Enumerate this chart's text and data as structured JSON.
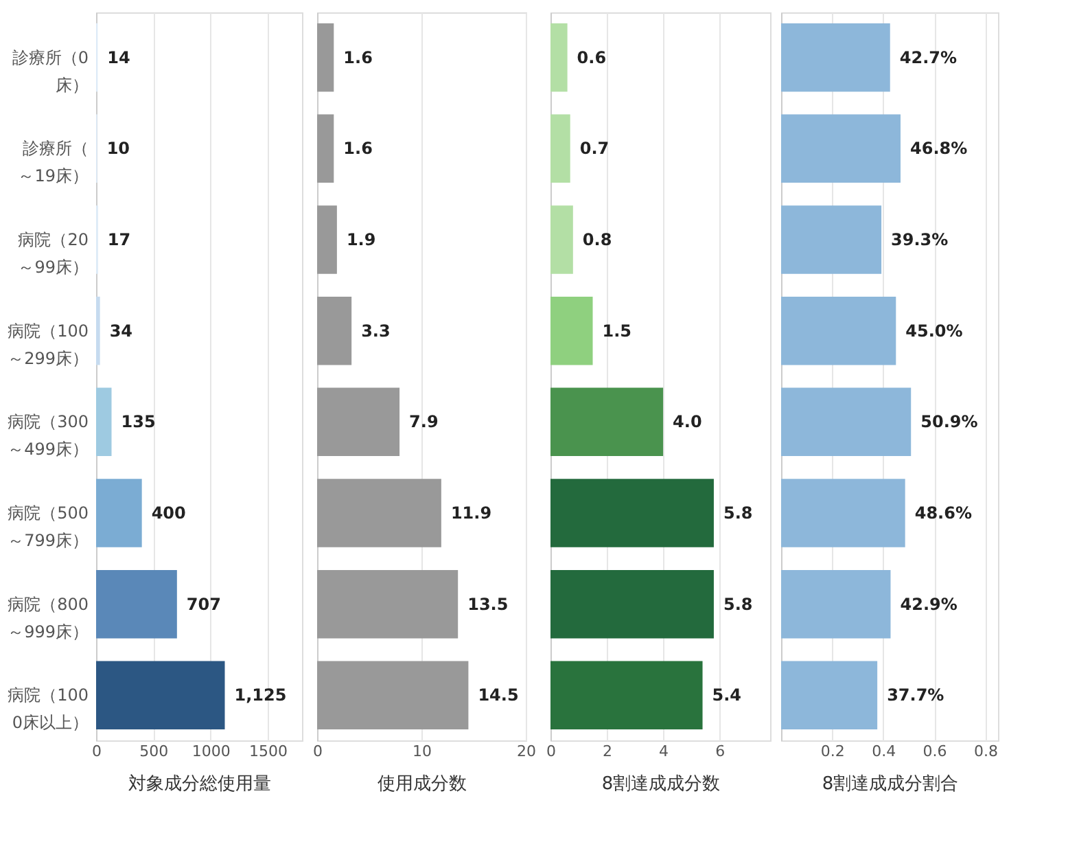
{
  "chart_data": [
    {
      "type": "bar",
      "orientation": "horizontal",
      "categories": [
        "診療所（0床）",
        "診療所（～19床）",
        "病院（20～99床）",
        "病院（100～299床）",
        "病院（300～499床）",
        "病院（500～799床）",
        "病院（800～999床）",
        "病院（1000床以上）"
      ],
      "values": [
        14,
        10,
        17,
        34,
        135,
        400,
        707,
        1125
      ],
      "value_labels": [
        "14",
        "10",
        "17",
        "34",
        "135",
        "400",
        "707",
        "1,125"
      ],
      "colors": [
        "#deebf7",
        "#deebf7",
        "#deebf7",
        "#c6dbef",
        "#9ecae1",
        "#7bacd3",
        "#5a88b8",
        "#2c5783"
      ],
      "xlim": [
        0,
        1800
      ],
      "xticks": [
        0,
        500,
        1000,
        1500
      ],
      "xlabel": "対象成分総使用量",
      "grid": "x"
    },
    {
      "type": "bar",
      "orientation": "horizontal",
      "categories": [
        "診療所（0床）",
        "診療所（～19床）",
        "病院（20～99床）",
        "病院（100～299床）",
        "病院（300～499床）",
        "病院（500～799床）",
        "病院（800～999床）",
        "病院（1000床以上）"
      ],
      "values": [
        1.6,
        1.6,
        1.9,
        3.3,
        7.9,
        11.9,
        13.5,
        14.5
      ],
      "value_labels": [
        "1.6",
        "1.6",
        "1.9",
        "3.3",
        "7.9",
        "11.9",
        "13.5",
        "14.5"
      ],
      "colors": [
        "#999999",
        "#999999",
        "#999999",
        "#999999",
        "#999999",
        "#999999",
        "#999999",
        "#999999"
      ],
      "xlim": [
        0,
        20
      ],
      "xticks": [
        0,
        10,
        20
      ],
      "xlabel": "使用成分数",
      "grid": "x",
      "tick_labels": "x"
    },
    {
      "type": "bar",
      "orientation": "horizontal",
      "categories": [
        "診療所（0床）",
        "診療所（～19床）",
        "病院（20～99床）",
        "病院（100～299床）",
        "病院（300～499床）",
        "病院（500～799床）",
        "病院（800～999床）",
        "病院（1000床以上）"
      ],
      "values": [
        0.6,
        0.7,
        0.8,
        1.5,
        4.0,
        5.8,
        5.8,
        5.4
      ],
      "value_labels": [
        "0.6",
        "0.7",
        "0.8",
        "1.5",
        "4.0",
        "5.8",
        "5.8",
        "5.4"
      ],
      "colors": [
        "#b3dfa5",
        "#b3dfa5",
        "#b3dfa5",
        "#8fd07f",
        "#4a934e",
        "#236a3d",
        "#236a3d",
        "#29733d"
      ],
      "xlim": [
        0,
        7.8
      ],
      "xticks": [
        0,
        2,
        4,
        6
      ],
      "xlabel": "8割達成成分数",
      "grid": "x",
      "tick_labels": "x"
    },
    {
      "type": "bar",
      "orientation": "horizontal",
      "categories": [
        "診療所（0床）",
        "診療所（～19床）",
        "病院（20～99床）",
        "病院（100～299床）",
        "病院（300～499床）",
        "病院（500～799床）",
        "病院（800～999床）",
        "病院（1000床以上）"
      ],
      "values": [
        0.427,
        0.468,
        0.393,
        0.45,
        0.509,
        0.486,
        0.429,
        0.377
      ],
      "value_labels": [
        "42.7%",
        "46.8%",
        "39.3%",
        "45.0%",
        "50.9%",
        "48.6%",
        "42.9%",
        "37.7%"
      ],
      "colors": [
        "#8db7da",
        "#8db7da",
        "#8db7da",
        "#8db7da",
        "#8db7da",
        "#8db7da",
        "#8db7da",
        "#8db7da"
      ],
      "xlim": [
        0,
        0.85
      ],
      "xticks": [
        0.2,
        0.4,
        0.6,
        0.8
      ],
      "xlabel": "8割達成成分割合",
      "grid": "x",
      "tick_labels": "x"
    }
  ]
}
